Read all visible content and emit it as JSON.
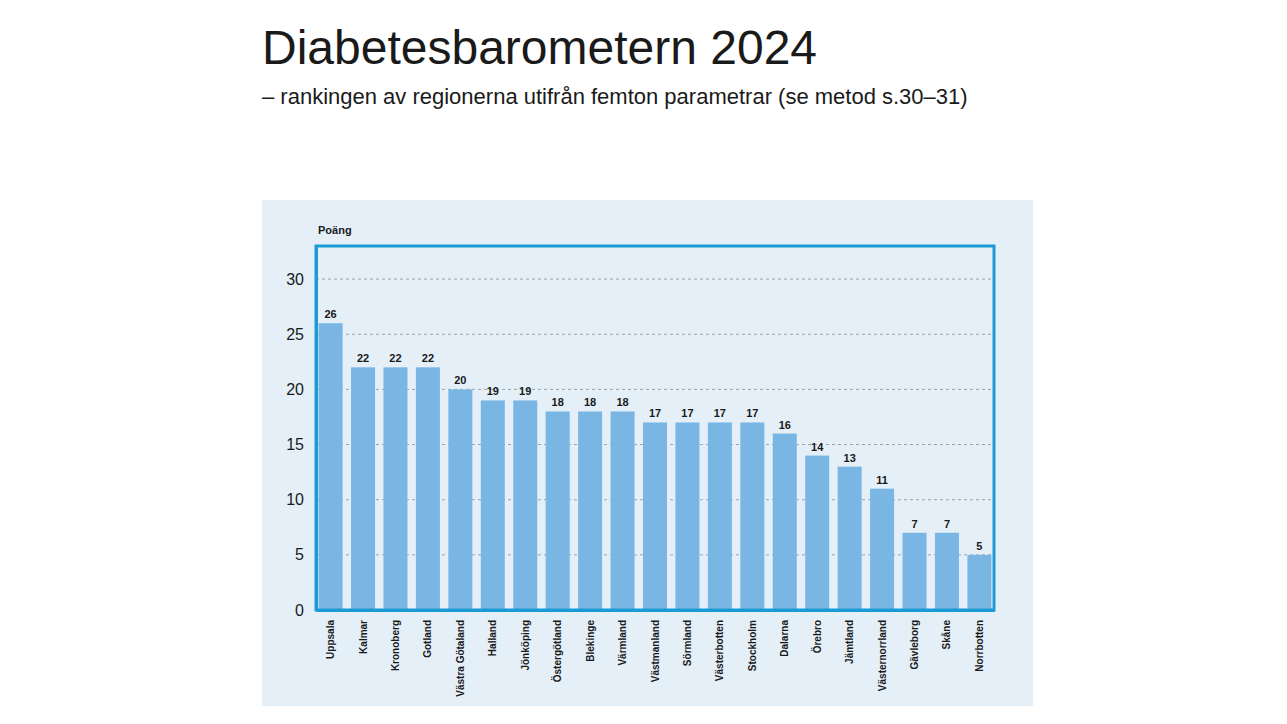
{
  "chart_data": {
    "type": "bar",
    "title": "Diabetesbarometern 2024",
    "subtitle": "– rankingen av regionerna utifrån femton parametrar (se metod s.30–31)",
    "ylabel": "Poäng",
    "categories": [
      "Uppsala",
      "Kalmar",
      "Kronoberg",
      "Gotland",
      "Västra Götaland",
      "Halland",
      "Jönköping",
      "Östergötland",
      "Blekinge",
      "Värmland",
      "Västmanland",
      "Sörmland",
      "Västerbotten",
      "Stockholm",
      "Dalarna",
      "Örebro",
      "Jämtland",
      "Västernorrland",
      "Gävleborg",
      "Skåne",
      "Norrbotten"
    ],
    "values": [
      26,
      22,
      22,
      22,
      20,
      19,
      19,
      18,
      18,
      18,
      17,
      17,
      17,
      17,
      16,
      14,
      13,
      11,
      7,
      7,
      5
    ],
    "color": "#79b6e4",
    "ylim": [
      0,
      33
    ],
    "yticks": [
      0,
      5,
      10,
      15,
      20,
      25,
      30
    ],
    "grid": true,
    "data_labels": true
  }
}
